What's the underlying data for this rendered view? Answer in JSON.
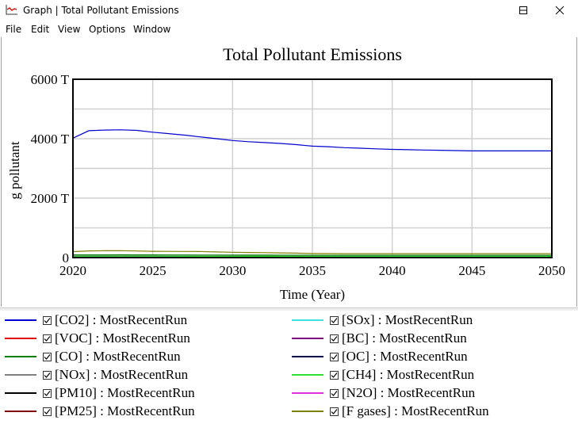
{
  "window": {
    "title": "Graph | Total Pollutant Emissions"
  },
  "menu": [
    "File",
    "Edit",
    "View",
    "Options",
    "Window"
  ],
  "chart_data": {
    "type": "line",
    "title": "Total Pollutant Emissions",
    "xlabel": "Time (Year)",
    "ylabel": "g pollutant",
    "xlim": [
      2020,
      2050
    ],
    "ylim": [
      0,
      6000
    ],
    "x_ticks": [
      "2020",
      "2025",
      "2030",
      "2035",
      "2040",
      "2045",
      "2050"
    ],
    "y_ticks": [
      "0",
      "2000 T",
      "4000 T",
      "6000 T"
    ],
    "grid": true,
    "legend_position": "bottom",
    "x": [
      2020,
      2021,
      2022,
      2023,
      2024,
      2025,
      2026,
      2027,
      2028,
      2029,
      2030,
      2031,
      2032,
      2033,
      2034,
      2035,
      2036,
      2037,
      2038,
      2039,
      2040,
      2041,
      2042,
      2043,
      2044,
      2045,
      2046,
      2047,
      2048,
      2049,
      2050
    ],
    "series": [
      {
        "name": "[CO2] : MostRecentRun",
        "color": "#0000d0",
        "values": [
          4020,
          4270,
          4290,
          4300,
          4280,
          4220,
          4170,
          4120,
          4060,
          4000,
          3940,
          3900,
          3870,
          3840,
          3800,
          3750,
          3730,
          3700,
          3680,
          3660,
          3640,
          3630,
          3620,
          3610,
          3600,
          3590,
          3590,
          3590,
          3590,
          3590,
          3590
        ]
      },
      {
        "name": "[VOC] : MostRecentRun",
        "color": "#e00000",
        "values": [
          40,
          40,
          40,
          40,
          40,
          38,
          38,
          38,
          37,
          37,
          36,
          36,
          36,
          35,
          35,
          34,
          34,
          34,
          34,
          34,
          34,
          34,
          34,
          34,
          34,
          34,
          34,
          34,
          34,
          34,
          34
        ]
      },
      {
        "name": "[CO] : MostRecentRun",
        "color": "#008000",
        "values": [
          90,
          92,
          92,
          93,
          92,
          90,
          88,
          87,
          86,
          85,
          84,
          83,
          82,
          81,
          80,
          78,
          78,
          77,
          77,
          76,
          76,
          76,
          76,
          76,
          76,
          76,
          76,
          76,
          76,
          76,
          76
        ]
      },
      {
        "name": "[NOx] : MostRecentRun",
        "color": "#808080",
        "values": [
          60,
          62,
          62,
          62,
          61,
          60,
          59,
          58,
          57,
          56,
          55,
          54,
          54,
          53,
          53,
          52,
          52,
          52,
          52,
          52,
          52,
          52,
          52,
          52,
          52,
          52,
          52,
          52,
          52,
          52,
          52
        ]
      },
      {
        "name": "[PM10] : MostRecentRun",
        "color": "#000000",
        "values": [
          15,
          15,
          15,
          15,
          15,
          15,
          15,
          14,
          14,
          14,
          14,
          14,
          14,
          14,
          14,
          14,
          14,
          14,
          14,
          14,
          14,
          14,
          14,
          14,
          14,
          14,
          14,
          14,
          14,
          14,
          14
        ]
      },
      {
        "name": "[PM25] : MostRecentRun",
        "color": "#800000",
        "values": [
          12,
          12,
          12,
          12,
          12,
          12,
          12,
          12,
          12,
          11,
          11,
          11,
          11,
          11,
          11,
          11,
          11,
          11,
          11,
          11,
          11,
          11,
          11,
          11,
          11,
          11,
          11,
          11,
          11,
          11,
          11
        ]
      },
      {
        "name": "[SOx] : MostRecentRun",
        "color": "#40e0e0",
        "values": [
          20,
          20,
          20,
          20,
          20,
          20,
          19,
          19,
          19,
          19,
          18,
          18,
          18,
          18,
          18,
          18,
          18,
          18,
          18,
          18,
          18,
          18,
          18,
          18,
          18,
          18,
          18,
          18,
          18,
          18,
          18
        ]
      },
      {
        "name": "[BC] : MostRecentRun",
        "color": "#800080",
        "values": [
          5,
          5,
          5,
          5,
          5,
          5,
          5,
          5,
          5,
          5,
          5,
          5,
          5,
          5,
          5,
          5,
          5,
          5,
          5,
          5,
          5,
          5,
          5,
          5,
          5,
          5,
          5,
          5,
          5,
          5,
          5
        ]
      },
      {
        "name": "[OC] : MostRecentRun",
        "color": "#000050",
        "values": [
          8,
          8,
          8,
          8,
          8,
          8,
          8,
          8,
          8,
          8,
          8,
          8,
          8,
          8,
          8,
          8,
          8,
          8,
          8,
          8,
          8,
          8,
          8,
          8,
          8,
          8,
          8,
          8,
          8,
          8,
          8
        ]
      },
      {
        "name": "[CH4] : MostRecentRun",
        "color": "#30e030",
        "values": [
          45,
          46,
          46,
          46,
          46,
          45,
          45,
          44,
          44,
          43,
          43,
          42,
          42,
          42,
          41,
          41,
          41,
          41,
          41,
          41,
          41,
          41,
          41,
          41,
          41,
          41,
          41,
          41,
          41,
          41,
          41
        ]
      },
      {
        "name": "[N2O] : MostRecentRun",
        "color": "#e030e0",
        "values": [
          3,
          3,
          3,
          3,
          3,
          3,
          3,
          3,
          3,
          3,
          3,
          3,
          3,
          3,
          3,
          3,
          3,
          3,
          3,
          3,
          3,
          3,
          3,
          3,
          3,
          3,
          3,
          3,
          3,
          3,
          3
        ]
      },
      {
        "name": "[F gases] : MostRecentRun",
        "color": "#808000",
        "values": [
          200,
          225,
          228,
          232,
          222,
          210,
          208,
          205,
          203,
          190,
          180,
          172,
          165,
          158,
          150,
          135,
          133,
          132,
          131,
          130,
          130,
          130,
          130,
          130,
          130,
          130,
          130,
          130,
          130,
          130,
          130
        ]
      }
    ]
  }
}
